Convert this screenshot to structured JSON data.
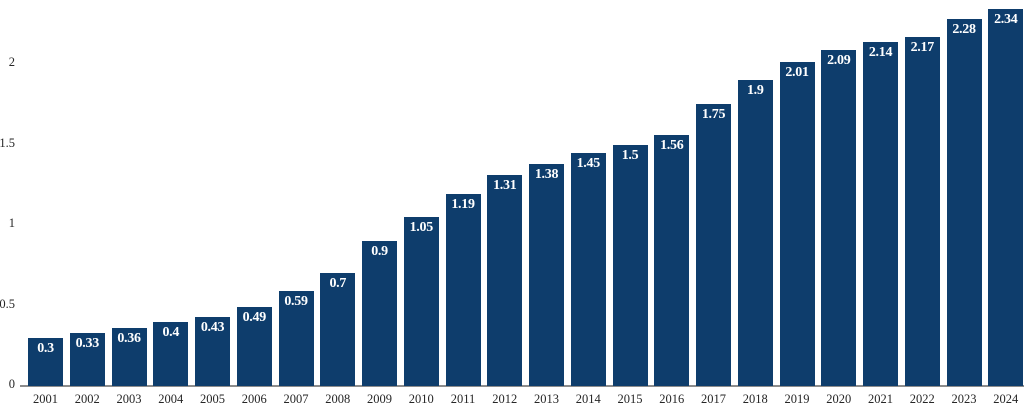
{
  "chart_data": {
    "type": "bar",
    "title": "",
    "xlabel": "",
    "ylabel": "",
    "categories": [
      "2001",
      "2002",
      "2003",
      "2004",
      "2005",
      "2006",
      "2007",
      "2008",
      "2009",
      "2010",
      "2011",
      "2012",
      "2013",
      "2014",
      "2015",
      "2016",
      "2017",
      "2018",
      "2019",
      "2020",
      "2021",
      "2022",
      "2023",
      "2024"
    ],
    "values": [
      0.3,
      0.33,
      0.36,
      0.4,
      0.43,
      0.49,
      0.59,
      0.7,
      0.9,
      1.05,
      1.19,
      1.31,
      1.38,
      1.45,
      1.5,
      1.56,
      1.75,
      1.9,
      2.01,
      2.09,
      2.14,
      2.17,
      2.28,
      2.34
    ],
    "value_labels": [
      "0.3",
      "0.33",
      "0.36",
      "0.4",
      "0.43",
      "0.49",
      "0.59",
      "0.7",
      "0.9",
      "1.05",
      "1.19",
      "1.31",
      "1.38",
      "1.45",
      "1.5",
      "1.56",
      "1.75",
      "1.9",
      "2.01",
      "2.09",
      "2.14",
      "2.17",
      "2.28",
      "2.34"
    ],
    "yticks": [
      0,
      0.5,
      1,
      1.5,
      2
    ],
    "ytick_labels": [
      "0",
      "0.5",
      "1",
      "1.5",
      "2"
    ],
    "ylim": [
      0,
      2.4
    ],
    "grid": false,
    "legend_position": "none",
    "bar_color": "#0e3d6c",
    "value_label_color": "#ffffff",
    "axis_line_color": "#8c8c8c",
    "tick_text_color": "#262626"
  }
}
